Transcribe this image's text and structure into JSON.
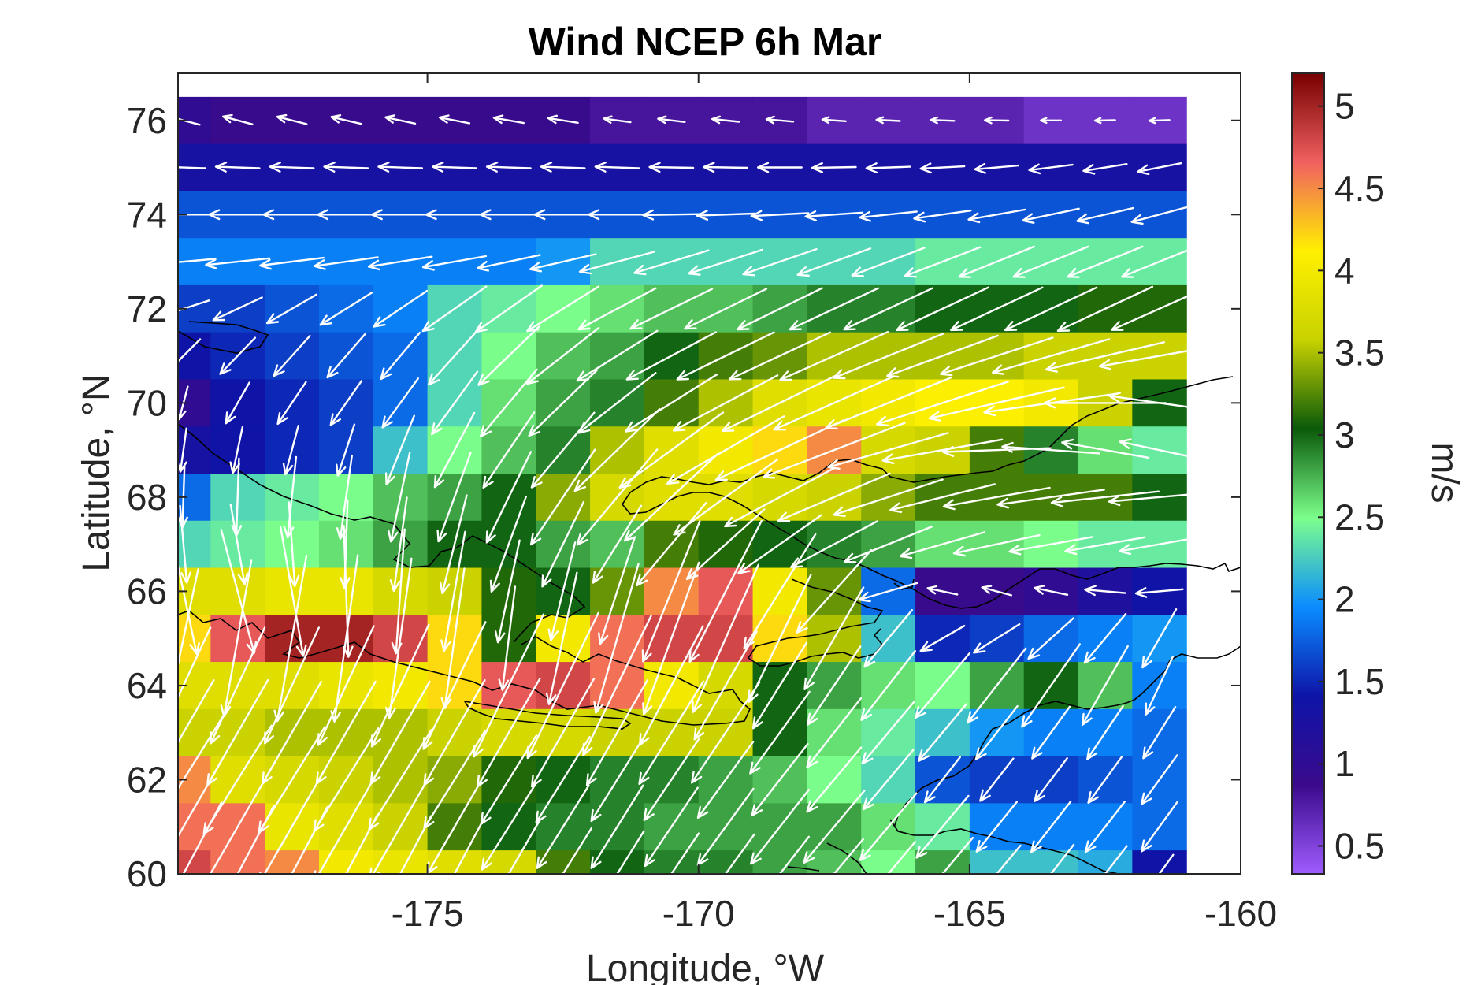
{
  "chart_data": {
    "type": "heatmap",
    "title": "Wind NCEP 6h Mar",
    "xlabel": "Longitude, °W",
    "ylabel": "Latitude, °N",
    "xlim": [
      -179.6,
      -160
    ],
    "ylim": [
      60,
      77
    ],
    "x_ticks": [
      -175,
      -170,
      -165,
      -160
    ],
    "y_ticks": [
      60,
      62,
      64,
      66,
      68,
      70,
      72,
      74,
      76
    ],
    "x_tick_labels": [
      "-175",
      "-170",
      "-165",
      "-160"
    ],
    "y_tick_labels": [
      "60",
      "62",
      "64",
      "66",
      "68",
      "70",
      "72",
      "74",
      "76"
    ],
    "colorbar": {
      "label": "m/s",
      "range": [
        0.33,
        5.2
      ],
      "ticks": [
        0.5,
        1,
        1.5,
        2,
        2.5,
        3,
        3.5,
        4,
        4.5,
        5
      ],
      "tick_labels": [
        "0.5",
        "1",
        "1.5",
        "2",
        "2.5",
        "3",
        "3.5",
        "4",
        "4.5",
        "5"
      ],
      "colors": [
        "#a05cff",
        "#3a0a8c",
        "#0e14a8",
        "#0a8cff",
        "#7cff8c",
        "#0a5a0a",
        "#c8d200",
        "#fff000",
        "#f06060",
        "#780000"
      ]
    },
    "grid": false,
    "lon": [
      -179.5,
      -178.5,
      -177.5,
      -176.5,
      -175.5,
      -174.5,
      -173.5,
      -172.5,
      -171.5,
      -170.5,
      -169.5,
      -168.5,
      -167.5,
      -166.5,
      -165.5,
      -164.5,
      -163.5,
      -162.5,
      -161.5
    ],
    "lat": [
      76,
      75,
      74,
      73,
      72,
      71,
      70,
      69,
      68,
      67,
      66,
      65,
      64,
      63,
      62,
      61,
      60
    ],
    "speed": [
      [
        1.0,
        0.9,
        0.9,
        0.9,
        0.9,
        0.9,
        0.9,
        0.9,
        0.8,
        0.8,
        0.8,
        0.8,
        0.7,
        0.7,
        0.7,
        0.7,
        0.6,
        0.6,
        0.6
      ],
      [
        1.3,
        1.3,
        1.3,
        1.3,
        1.3,
        1.3,
        1.3,
        1.3,
        1.3,
        1.3,
        1.3,
        1.3,
        1.3,
        1.3,
        1.3,
        1.3,
        1.3,
        1.3,
        1.3
      ],
      [
        1.7,
        1.7,
        1.7,
        1.7,
        1.7,
        1.7,
        1.7,
        1.7,
        1.7,
        1.7,
        1.7,
        1.7,
        1.7,
        1.7,
        1.7,
        1.7,
        1.7,
        1.7,
        1.7
      ],
      [
        1.9,
        1.9,
        1.9,
        1.9,
        1.9,
        1.9,
        1.9,
        2.0,
        2.3,
        2.3,
        2.3,
        2.3,
        2.3,
        2.3,
        2.4,
        2.4,
        2.4,
        2.4,
        2.4
      ],
      [
        1.6,
        1.6,
        1.7,
        1.8,
        1.9,
        2.3,
        2.4,
        2.5,
        2.6,
        2.7,
        2.7,
        2.8,
        2.9,
        2.9,
        3.0,
        3.0,
        3.0,
        3.1,
        3.1
      ],
      [
        1.4,
        1.5,
        1.6,
        1.7,
        1.8,
        2.3,
        2.5,
        2.7,
        2.8,
        3.0,
        3.2,
        3.3,
        3.5,
        3.5,
        3.5,
        3.5,
        3.6,
        3.6,
        3.6
      ],
      [
        1.0,
        1.4,
        1.5,
        1.6,
        1.8,
        2.3,
        2.6,
        2.8,
        2.9,
        3.2,
        3.5,
        3.8,
        3.9,
        4.0,
        4.1,
        4.1,
        4.0,
        3.6,
        3.0
      ],
      [
        1.3,
        1.4,
        1.5,
        1.6,
        2.2,
        2.5,
        2.7,
        2.9,
        3.5,
        3.8,
        4.0,
        4.2,
        4.5,
        3.7,
        3.6,
        3.2,
        2.9,
        2.6,
        2.4
      ],
      [
        1.8,
        2.3,
        2.4,
        2.5,
        2.7,
        2.8,
        3.0,
        3.4,
        3.7,
        3.8,
        3.8,
        3.7,
        3.6,
        3.4,
        3.2,
        3.2,
        3.2,
        3.2,
        3.0
      ],
      [
        2.3,
        2.4,
        2.5,
        2.6,
        2.8,
        3.0,
        3.0,
        2.8,
        2.7,
        3.2,
        3.1,
        3.0,
        2.9,
        2.8,
        2.6,
        2.6,
        2.5,
        2.4,
        2.4
      ],
      [
        3.8,
        3.8,
        3.9,
        3.9,
        3.7,
        3.6,
        3.1,
        3.0,
        3.3,
        4.5,
        4.7,
        4.0,
        3.3,
        1.8,
        0.9,
        0.9,
        1.0,
        1.2,
        1.4
      ],
      [
        4.2,
        4.7,
        5.0,
        5.0,
        4.8,
        4.2,
        3.1,
        4.0,
        4.6,
        4.8,
        4.8,
        4.2,
        3.5,
        2.2,
        1.5,
        1.6,
        1.8,
        1.9,
        2.0
      ],
      [
        3.8,
        3.8,
        3.8,
        3.9,
        4.0,
        4.2,
        4.7,
        4.8,
        4.6,
        4.0,
        3.7,
        3.0,
        2.8,
        2.6,
        2.5,
        2.8,
        3.0,
        2.7,
        1.9
      ],
      [
        3.6,
        3.6,
        3.5,
        3.5,
        3.5,
        3.6,
        3.7,
        3.7,
        3.6,
        3.6,
        3.6,
        3.0,
        2.6,
        2.4,
        2.2,
        2.0,
        1.9,
        1.9,
        1.8
      ],
      [
        4.5,
        3.8,
        3.7,
        3.6,
        3.5,
        3.4,
        3.1,
        3.0,
        2.9,
        2.9,
        2.8,
        2.7,
        2.5,
        2.3,
        1.7,
        1.6,
        1.6,
        1.7,
        1.8
      ],
      [
        4.6,
        4.6,
        3.9,
        3.8,
        3.6,
        3.2,
        3.0,
        2.9,
        2.9,
        2.8,
        2.8,
        2.8,
        2.8,
        2.6,
        2.4,
        1.9,
        1.9,
        1.9,
        1.8
      ],
      [
        4.8,
        4.6,
        4.5,
        4.0,
        3.9,
        3.8,
        3.7,
        3.2,
        3.0,
        2.9,
        2.9,
        2.8,
        2.7,
        2.5,
        2.8,
        2.2,
        2.2,
        2.1,
        1.4
      ]
    ],
    "direction_to_deg": [
      [
        165,
        165,
        166,
        167,
        168,
        169,
        170,
        171,
        172,
        173,
        174,
        175,
        176,
        177,
        178,
        179,
        180,
        181,
        182
      ],
      [
        178,
        178,
        178,
        178,
        178,
        178,
        178,
        178,
        178,
        179,
        179,
        180,
        181,
        182,
        183,
        185,
        187,
        189,
        191
      ],
      [
        180,
        180,
        180,
        180,
        180,
        180,
        180,
        180,
        180,
        181,
        182,
        183,
        184,
        186,
        188,
        190,
        192,
        193,
        195
      ],
      [
        185,
        186,
        187,
        188,
        189,
        190,
        192,
        193,
        195,
        197,
        198,
        199,
        200,
        201,
        201,
        202,
        202,
        202,
        202
      ],
      [
        198,
        205,
        210,
        212,
        214,
        215,
        215,
        212,
        208,
        206,
        206,
        206,
        205,
        205,
        205,
        205,
        205,
        205,
        204
      ],
      [
        225,
        226,
        228,
        229,
        230,
        228,
        224,
        218,
        212,
        208,
        206,
        205,
        204,
        202,
        200,
        198,
        196,
        193,
        190
      ],
      [
        255,
        240,
        236,
        235,
        234,
        234,
        230,
        224,
        218,
        212,
        208,
        206,
        204,
        202,
        198,
        193,
        188,
        180,
        172
      ],
      [
        262,
        258,
        255,
        252,
        248,
        242,
        236,
        230,
        224,
        216,
        210,
        205,
        201,
        196,
        190,
        182,
        176,
        170,
        168
      ],
      [
        268,
        268,
        264,
        262,
        258,
        250,
        244,
        236,
        230,
        223,
        216,
        208,
        203,
        198,
        194,
        190,
        188,
        186,
        185
      ],
      [
        275,
        280,
        274,
        268,
        262,
        256,
        250,
        244,
        238,
        230,
        222,
        215,
        208,
        202,
        196,
        192,
        190,
        190,
        190
      ],
      [
        282,
        285,
        280,
        272,
        266,
        260,
        258,
        256,
        252,
        248,
        243,
        238,
        228,
        196,
        168,
        165,
        168,
        175,
        185
      ],
      [
        258,
        260,
        260,
        262,
        262,
        262,
        263,
        258,
        254,
        250,
        246,
        244,
        240,
        230,
        210,
        212,
        222,
        230,
        240
      ],
      [
        245,
        245,
        245,
        245,
        245,
        244,
        244,
        244,
        244,
        242,
        240,
        238,
        236,
        232,
        230,
        232,
        235,
        240,
        245
      ],
      [
        240,
        240,
        240,
        240,
        240,
        240,
        240,
        240,
        240,
        238,
        236,
        234,
        232,
        230,
        230,
        232,
        234,
        236,
        238
      ],
      [
        238,
        238,
        238,
        238,
        238,
        238,
        238,
        238,
        238,
        236,
        234,
        232,
        230,
        230,
        232,
        232,
        233,
        234,
        234
      ],
      [
        240,
        240,
        240,
        240,
        240,
        240,
        238,
        238,
        238,
        236,
        234,
        232,
        230,
        230,
        230,
        231,
        232,
        232,
        234
      ],
      [
        242,
        242,
        242,
        242,
        242,
        242,
        240,
        238,
        238,
        236,
        234,
        232,
        230,
        230,
        230,
        230,
        232,
        232,
        234
      ]
    ],
    "vector_color": "#ffffff",
    "coastline_color": "#000000"
  }
}
